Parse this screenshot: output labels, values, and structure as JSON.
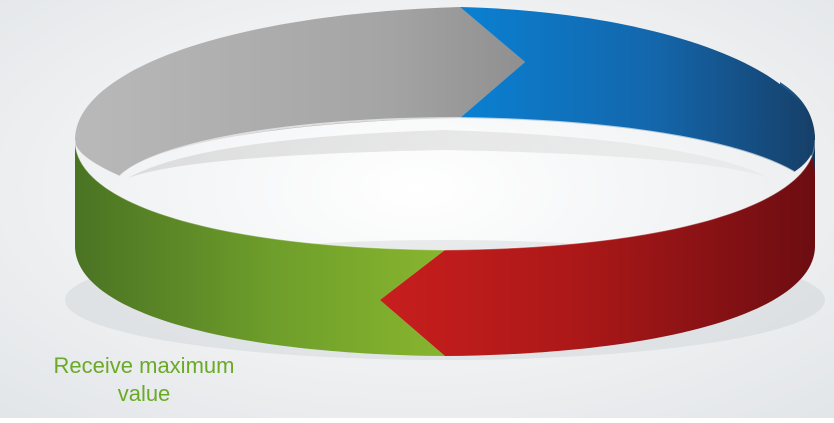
{
  "diagram": {
    "type": "cycle-ring",
    "segments": [
      {
        "name": "gray-segment",
        "color": "#a3a3a3"
      },
      {
        "name": "blue-segment",
        "color": "#1a74c0"
      },
      {
        "name": "red-segment",
        "color": "#a8161b"
      },
      {
        "name": "green-segment",
        "color": "#6e9f2c"
      }
    ],
    "background": "#eef0f2"
  },
  "labels": {
    "green": {
      "line1": "Receive maximum",
      "line2": "value",
      "color": "#6aaa26"
    }
  }
}
